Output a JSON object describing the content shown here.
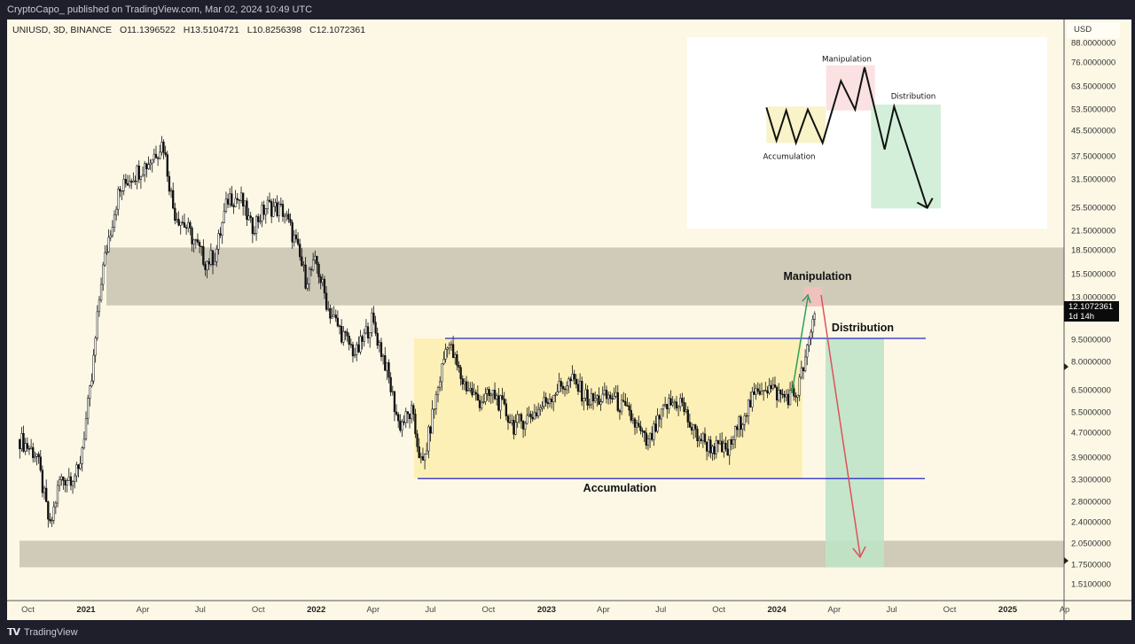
{
  "header": {
    "published": "CryptoCapo_ published on TradingView.com, Mar 02, 2024 10:49 UTC"
  },
  "footer": {
    "brand": "TradingView",
    "logo": "TV"
  },
  "chart_data": {
    "type": "candlestick",
    "symbol": "UNIUSD, 3D, BINANCE",
    "ohlc": {
      "open": "O11.1396522",
      "high": "H13.5104721",
      "low": "L10.8256398",
      "close": "C12.1072361"
    },
    "currency": "USD",
    "scale": "log",
    "ylim": [
      1.4,
      95
    ],
    "yticks": [
      "88.0000000",
      "76.0000000",
      "63.5000000",
      "53.5000000",
      "45.5000000",
      "37.5000000",
      "31.5000000",
      "25.5000000",
      "21.5000000",
      "18.5000000",
      "15.5000000",
      "13.0000000",
      "9.5000000",
      "8.0000000",
      "6.5000000",
      "5.5000000",
      "4.7000000",
      "3.9000000",
      "3.3000000",
      "2.8000000",
      "2.4000000",
      "2.0500000",
      "1.7500000",
      "1.5100000"
    ],
    "xticks": [
      {
        "label": "Oct",
        "date": "2020-10-01",
        "year": false
      },
      {
        "label": "2021",
        "date": "2021-01-01",
        "year": true
      },
      {
        "label": "Apr",
        "date": "2021-04-01",
        "year": false
      },
      {
        "label": "Jul",
        "date": "2021-07-01",
        "year": false
      },
      {
        "label": "Oct",
        "date": "2021-10-01",
        "year": false
      },
      {
        "label": "2022",
        "date": "2022-01-01",
        "year": true
      },
      {
        "label": "Apr",
        "date": "2022-04-01",
        "year": false
      },
      {
        "label": "Jul",
        "date": "2022-07-01",
        "year": false
      },
      {
        "label": "Oct",
        "date": "2022-10-01",
        "year": false
      },
      {
        "label": "2023",
        "date": "2023-01-01",
        "year": true
      },
      {
        "label": "Apr",
        "date": "2023-04-01",
        "year": false
      },
      {
        "label": "Jul",
        "date": "2023-07-01",
        "year": false
      },
      {
        "label": "Oct",
        "date": "2023-10-01",
        "year": false
      },
      {
        "label": "2024",
        "date": "2024-01-01",
        "year": true
      },
      {
        "label": "Apr",
        "date": "2024-04-01",
        "year": false
      },
      {
        "label": "Jul",
        "date": "2024-07-01",
        "year": false
      },
      {
        "label": "Oct",
        "date": "2024-10-01",
        "year": false
      },
      {
        "label": "2025",
        "date": "2025-01-01",
        "year": true
      },
      {
        "label": "Ap",
        "date": "2025-04-01",
        "year": false
      }
    ],
    "current_price": {
      "value": "12.1072361",
      "countdown": "1d 14h"
    },
    "price_path": [
      [
        "2020-09-18",
        4.5
      ],
      [
        "2020-10-15",
        4.0
      ],
      [
        "2020-11-05",
        2.3
      ],
      [
        "2020-11-20",
        3.3
      ],
      [
        "2020-12-20",
        3.5
      ],
      [
        "2021-01-10",
        7
      ],
      [
        "2021-01-25",
        15
      ],
      [
        "2021-02-05",
        20
      ],
      [
        "2021-02-20",
        28
      ],
      [
        "2021-03-10",
        32
      ],
      [
        "2021-04-10",
        36
      ],
      [
        "2021-05-03",
        42
      ],
      [
        "2021-05-20",
        25
      ],
      [
        "2021-06-10",
        22
      ],
      [
        "2021-07-10",
        17
      ],
      [
        "2021-07-25",
        18
      ],
      [
        "2021-08-15",
        28
      ],
      [
        "2021-09-05",
        27
      ],
      [
        "2021-09-20",
        22
      ],
      [
        "2021-10-15",
        26
      ],
      [
        "2021-11-10",
        25
      ],
      [
        "2021-11-28",
        20
      ],
      [
        "2021-12-15",
        15
      ],
      [
        "2022-01-01",
        17
      ],
      [
        "2022-01-20",
        12
      ],
      [
        "2022-02-10",
        10
      ],
      [
        "2022-03-05",
        8.5
      ],
      [
        "2022-03-30",
        11
      ],
      [
        "2022-04-20",
        8
      ],
      [
        "2022-05-12",
        5
      ],
      [
        "2022-06-01",
        5.5
      ],
      [
        "2022-06-18",
        3.6
      ],
      [
        "2022-07-05",
        5.5
      ],
      [
        "2022-07-28",
        9.5
      ],
      [
        "2022-08-20",
        7
      ],
      [
        "2022-09-15",
        6
      ],
      [
        "2022-10-10",
        6.3
      ],
      [
        "2022-11-10",
        5
      ],
      [
        "2022-12-15",
        5.5
      ],
      [
        "2023-01-15",
        6.5
      ],
      [
        "2023-02-10",
        7
      ],
      [
        "2023-03-10",
        6
      ],
      [
        "2023-04-15",
        6.2
      ],
      [
        "2023-05-15",
        5.3
      ],
      [
        "2023-06-10",
        4.3
      ],
      [
        "2023-07-10",
        5.8
      ],
      [
        "2023-08-01",
        6
      ],
      [
        "2023-08-20",
        4.8
      ],
      [
        "2023-09-15",
        4.3
      ],
      [
        "2023-10-15",
        4.1
      ],
      [
        "2023-11-10",
        5.5
      ],
      [
        "2023-12-10",
        6.8
      ],
      [
        "2024-01-10",
        6.2
      ],
      [
        "2024-02-01",
        6.3
      ],
      [
        "2024-02-20",
        9
      ],
      [
        "2024-03-02",
        12.1
      ]
    ],
    "zones": {
      "upper_supply": [
        12.3,
        19.0
      ],
      "lower_demand": [
        1.72,
        2.1
      ],
      "range_high": 9.6,
      "range_low": 3.35
    },
    "annotations": {
      "manipulation": "Manipulation",
      "distribution": "Distribution",
      "accumulation": "Accumulation"
    },
    "inset": {
      "manipulation": "Manipulation",
      "distribution": "Distribution",
      "accumulation": "Accumulation"
    },
    "colors": {
      "background": "#fdf8e6",
      "zone": "#c8c2b0",
      "accumulation": "#fbeeae",
      "distribution": "#bfe3c6",
      "manipulation": "#f3c0c0",
      "range_line": "#2424c8",
      "up_arrow": "#2e9e5b",
      "down_arrow": "#e0505a"
    }
  }
}
